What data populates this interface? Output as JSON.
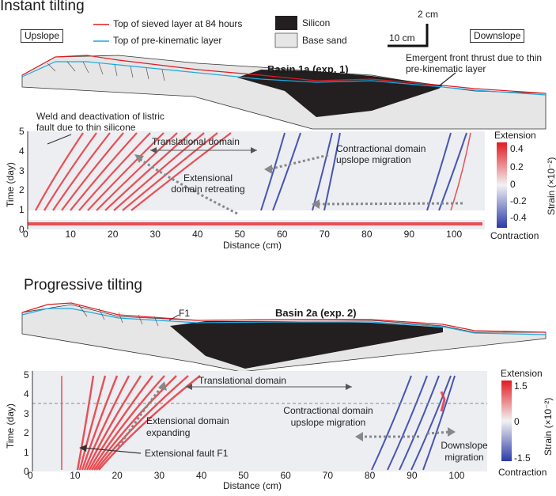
{
  "panel_a": {
    "title": "Instant tilting",
    "legend": {
      "red_line": "Top of sieved layer at 84 hours",
      "blue_line": "Top of pre-kinematic layer",
      "silicon": "Silicon",
      "base_sand": "Base sand",
      "line_color_red": "#e11b22",
      "line_color_blue": "#1ea8e0",
      "silicon_color": "#231f20",
      "sand_color": "#e6e6e6"
    },
    "upslope": "Upslope",
    "downslope": "Downslope",
    "scale_v": "2 cm",
    "scale_h": "10 cm",
    "basin": "Basin 1a (exp. 1)",
    "emergent": "Emergent front thrust due to thin pre-kinematic layer",
    "weld": "Weld and deactivation of listric fault due to thin silicone",
    "translational": "Translational domain",
    "contractional": "Contractional domain upslope migration",
    "extensional": "Extensional domain retreating"
  },
  "panel_b": {
    "title": "Progressive tilting",
    "f1": "F1",
    "basin": "Basin 2a (exp. 2)",
    "translational": "Translational domain",
    "extensional": "Extensional domain expanding",
    "contractional": "Contractional domain upslope migration",
    "fault": "Extensional fault F1",
    "downslope_migration": "Downslope migration"
  },
  "colorbar_a": {
    "title": "Extension",
    "bottom": "Contraction",
    "ticks": [
      "0.4",
      "0.2",
      "0",
      "-0.2",
      "-0.4"
    ],
    "label": "Strain (×10⁻²)"
  },
  "colorbar_b": {
    "title": "Extension",
    "bottom": "Contraction",
    "ticks": [
      "1.5",
      "0",
      "-1.5"
    ],
    "label": "Strain (×10⁻²)"
  },
  "chart_data": [
    {
      "type": "heatmap",
      "title": "",
      "xlabel": "Distance (cm)",
      "ylabel": "Time (day)",
      "x_ticks": [
        "0",
        "10",
        "20",
        "30",
        "40",
        "50",
        "60",
        "70",
        "80",
        "90",
        "100"
      ],
      "y_ticks": [
        "0",
        "1",
        "2",
        "3",
        "4",
        "5"
      ],
      "xlim": [
        0,
        108
      ],
      "ylim": [
        0,
        5
      ],
      "colorbar": {
        "min": -0.4,
        "max": 0.4,
        "unit": "Strain (×10⁻²)"
      }
    },
    {
      "type": "heatmap",
      "title": "",
      "xlabel": "Distance (cm)",
      "ylabel": "Time (day)",
      "x_ticks": [
        "0",
        "10",
        "20",
        "30",
        "40",
        "50",
        "60",
        "70",
        "80",
        "90",
        "100"
      ],
      "y_ticks": [
        "0",
        "1",
        "2",
        "3",
        "4",
        "5"
      ],
      "xlim": [
        0,
        108
      ],
      "ylim": [
        0,
        5.2
      ],
      "colorbar": {
        "min": -1.5,
        "max": 1.5,
        "unit": "Strain (×10⁻²)"
      }
    }
  ]
}
